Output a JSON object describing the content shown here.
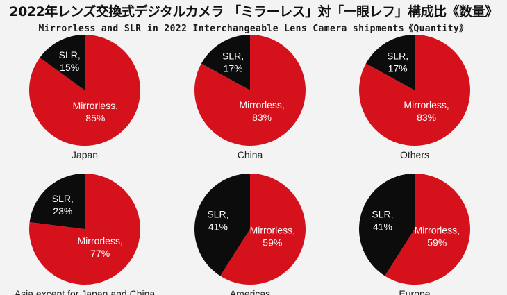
{
  "title": "2022年レンズ交換式デジタルカメラ 「ミラーレス」対「一眼レフ」構成比《数量》",
  "subtitle": "Mirrorless and SLR in 2022 Interchangeable Lens Camera shipments《Quantity》",
  "colors": {
    "mirrorless": "#d5121c",
    "slr": "#0c0c0c",
    "label_text": "#ffffff",
    "caption_text": "#222222"
  },
  "chart_data": [
    {
      "type": "pie",
      "title": "Japan",
      "slices": [
        {
          "name": "Mirrorless",
          "value": 85,
          "label": "85%"
        },
        {
          "name": "SLR",
          "value": 15,
          "label": "15%"
        }
      ]
    },
    {
      "type": "pie",
      "title": "China",
      "slices": [
        {
          "name": "Mirrorless",
          "value": 83,
          "label": "83%"
        },
        {
          "name": "SLR",
          "value": 17,
          "label": "17%"
        }
      ]
    },
    {
      "type": "pie",
      "title": "Others",
      "slices": [
        {
          "name": "Mirrorless",
          "value": 83,
          "label": "83%"
        },
        {
          "name": "SLR",
          "value": 17,
          "label": "17%"
        }
      ]
    },
    {
      "type": "pie",
      "title": "Asia except for Japan and China",
      "slices": [
        {
          "name": "Mirrorless",
          "value": 77,
          "label": "77%"
        },
        {
          "name": "SLR",
          "value": 23,
          "label": "23%"
        }
      ]
    },
    {
      "type": "pie",
      "title": "Americas",
      "slices": [
        {
          "name": "Mirrorless",
          "value": 59,
          "label": "59%"
        },
        {
          "name": "SLR",
          "value": 41,
          "label": "41%"
        }
      ]
    },
    {
      "type": "pie",
      "title": "Europe",
      "slices": [
        {
          "name": "Mirrorless",
          "value": 59,
          "label": "59%"
        },
        {
          "name": "SLR",
          "value": 41,
          "label": "41%"
        }
      ]
    }
  ]
}
